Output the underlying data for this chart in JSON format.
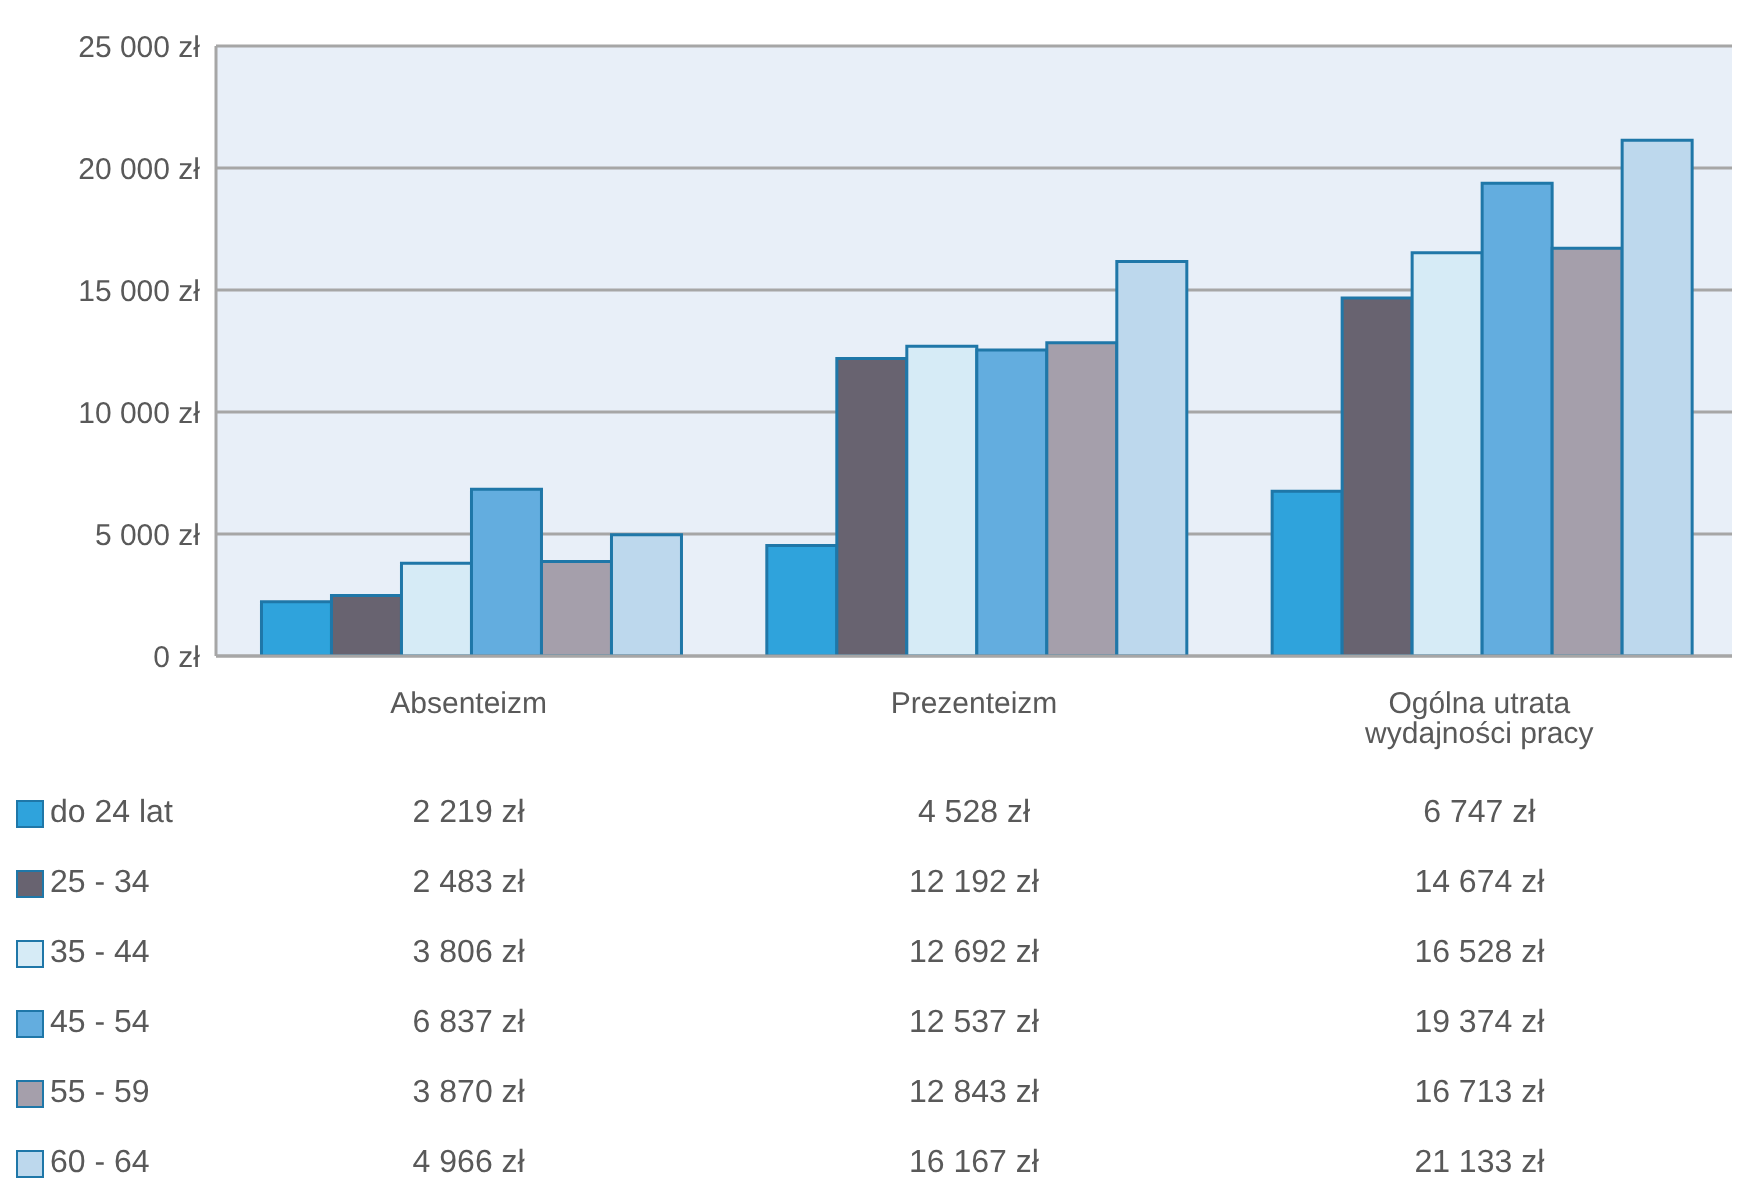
{
  "chart_data": {
    "type": "bar",
    "categories": [
      "Absenteizm",
      "Prezenteizm",
      "Ogólna utrata wydajności pracy"
    ],
    "series": [
      {
        "name": "do 24 lat",
        "color": "#2fa3dc",
        "values": [
          2219,
          4528,
          6747
        ],
        "value_labels": [
          "2 219 zł",
          "4 528 zł",
          "6 747 zł"
        ]
      },
      {
        "name": "25 - 34",
        "color": "#686370",
        "values": [
          2483,
          12192,
          14674
        ],
        "value_labels": [
          "2 483 zł",
          "12 192 zł",
          "14 674 zł"
        ]
      },
      {
        "name": "35 - 44",
        "color": "#d6ebf6",
        "values": [
          3806,
          12692,
          16528
        ],
        "value_labels": [
          "3 806 zł",
          "12 692 zł",
          "16 528 zł"
        ]
      },
      {
        "name": "45 - 54",
        "color": "#63addf",
        "values": [
          6837,
          12537,
          19374
        ],
        "value_labels": [
          "6 837 zł",
          "12 537 zł",
          "19 374 zł"
        ]
      },
      {
        "name": "55 - 59",
        "color": "#a59fab",
        "values": [
          3870,
          12843,
          16713
        ],
        "value_labels": [
          "3 870 zł",
          "12 843 zł",
          "16 713 zł"
        ]
      },
      {
        "name": "60 - 64",
        "color": "#bdd8ed",
        "values": [
          4966,
          16167,
          21133
        ],
        "value_labels": [
          "4 966 zł",
          "16 167 zł",
          "21 133 zł"
        ]
      }
    ],
    "ylim": [
      0,
      25000
    ],
    "yticks": [
      {
        "value": 0,
        "label": "0 zł"
      },
      {
        "value": 5000,
        "label": "5 000 zł"
      },
      {
        "value": 10000,
        "label": "10 000 zł"
      },
      {
        "value": 15000,
        "label": "15 000 zł"
      },
      {
        "value": 20000,
        "label": "20 000 zł"
      },
      {
        "value": 25000,
        "label": "25 000 zł"
      }
    ],
    "grid": "y",
    "legend": "bottom"
  }
}
